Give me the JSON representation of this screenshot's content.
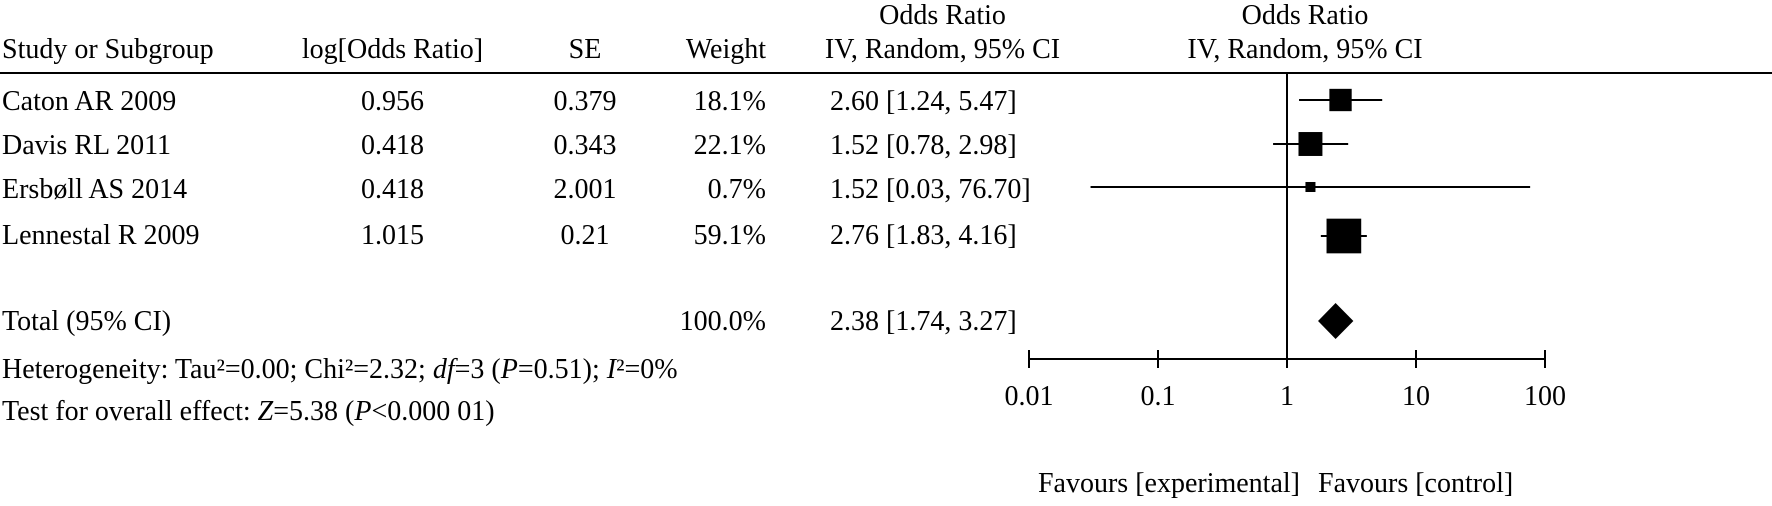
{
  "headers": {
    "study": "Study or Subgroup",
    "log_or": "log[Odds Ratio]",
    "se": "SE",
    "weight": "Weight",
    "or_top": "Odds Ratio",
    "or_sub": "IV, Random, 95% CI",
    "plot_top": "Odds Ratio",
    "plot_sub": "IV, Random, 95% CI"
  },
  "studies": [
    {
      "name": "Caton AR 2009",
      "log_or": "0.956",
      "se": "0.379",
      "weight": "18.1%",
      "ci_text": "2.60 [1.24, 5.47]"
    },
    {
      "name": "Davis RL 2011",
      "log_or": "0.418",
      "se": "0.343",
      "weight": "22.1%",
      "ci_text": "1.52 [0.78, 2.98]"
    },
    {
      "name": "Ersbøll AS 2014",
      "log_or": "0.418",
      "se": "2.001",
      "weight": "0.7%",
      "ci_text": "1.52 [0.03, 76.70]"
    },
    {
      "name": "Lennestal R 2009",
      "log_or": "1.015",
      "se": "0.21",
      "weight": "59.1%",
      "ci_text": "2.76 [1.83, 4.16]"
    }
  ],
  "total": {
    "name": "Total (95% CI)",
    "weight": "100.0%",
    "ci_text": "2.38 [1.74, 3.27]"
  },
  "heterogeneity": {
    "prefix": "Heterogeneity: Tau²=0.00; Chi²=2.32; ",
    "df_label": "df",
    "df_value": "=3 (",
    "p_label": "P",
    "p_value": "=0.51); ",
    "i2_label": "I",
    "i2_value": "²=0%"
  },
  "overall": {
    "prefix": "Test for overall effect: ",
    "z_label": "Z",
    "z_value": "=5.38 (",
    "p_label": "P",
    "p_value": "<0.000 01)"
  },
  "axis": {
    "tick_labels": [
      "0.01",
      "0.1",
      "1",
      "10",
      "100"
    ],
    "left_label": "Favours [experimental]",
    "right_label": "Favours [control]"
  },
  "chart_data": {
    "type": "forest",
    "x_scale": "log",
    "xlim": [
      0.01,
      100
    ],
    "ticks": [
      0.01,
      0.1,
      1,
      10,
      100
    ],
    "reference_line": 1,
    "studies": [
      {
        "name": "Caton AR 2009",
        "or": 2.6,
        "lower": 1.24,
        "upper": 5.47,
        "weight": 18.1
      },
      {
        "name": "Davis RL 2011",
        "or": 1.52,
        "lower": 0.78,
        "upper": 2.98,
        "weight": 22.1
      },
      {
        "name": "Ersbøll AS 2014",
        "or": 1.52,
        "lower": 0.03,
        "upper": 76.7,
        "weight": 0.7
      },
      {
        "name": "Lennestal R 2009",
        "or": 2.76,
        "lower": 1.83,
        "upper": 4.16,
        "weight": 59.1
      }
    ],
    "pooled": {
      "name": "Total (95% CI)",
      "or": 2.38,
      "lower": 1.74,
      "upper": 3.27,
      "weight": 100.0
    }
  }
}
